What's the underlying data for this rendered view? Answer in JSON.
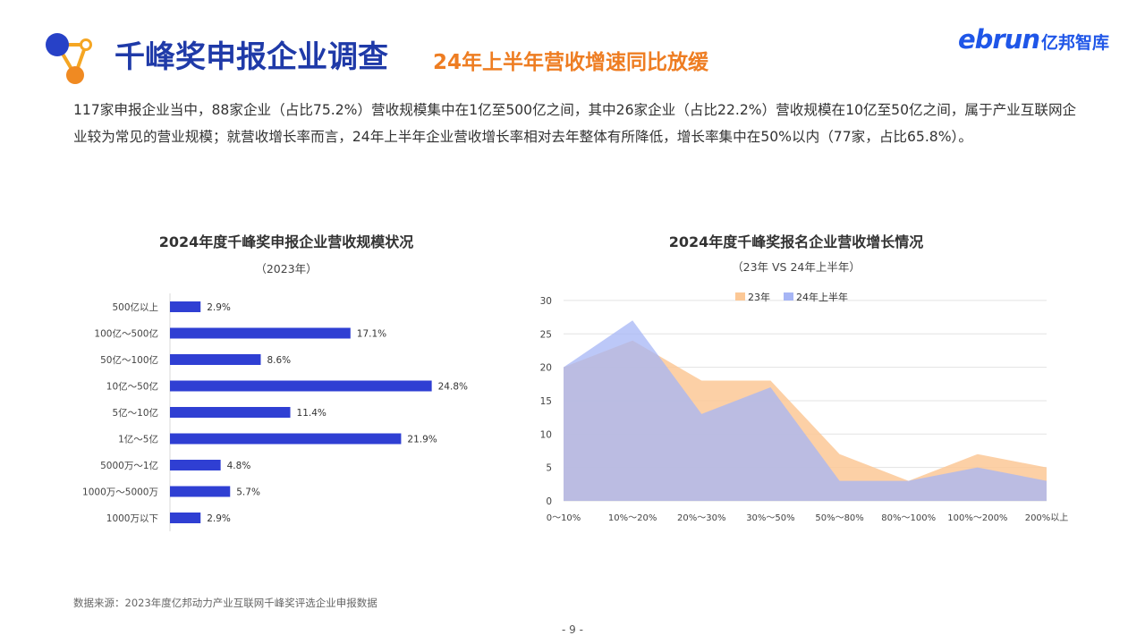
{
  "header": {
    "title": "千峰奖申报企业调查",
    "subtitle": "24年上半年营收增速同比放缓",
    "brand_wordmark": "ebrun",
    "brand_cn": "亿邦智库",
    "logo_icon": "molecule-logo-icon"
  },
  "colors": {
    "title": "#1f3aa8",
    "subtitle": "#ee7d22",
    "brand": "#1f56e8",
    "bar": "#2f3fd3",
    "area_2023": "#fcc896",
    "area_2024": "#a6b5f5",
    "logo_blue": "#2741c7",
    "logo_orange": "#f5a623",
    "logo_orange_dark": "#f08a22"
  },
  "intro": "117家申报企业当中，88家企业（占比75.2%）营收规模集中在1亿至500亿之间，其中26家企业（占比22.2%）营收规模在10亿至50亿之间，属于产业互联网企业较为常见的营业规模；就营收增长率而言，24年上半年企业营收增长率相对去年整体有所降低，增长率集中在50%以内（77家，占比65.8%）。",
  "chart_data": [
    {
      "type": "bar",
      "orientation": "horizontal",
      "title": "2024年度千峰奖申报企业营收规模状况",
      "subtitle": "（2023年）",
      "categories": [
        "500亿以上",
        "100亿～500亿",
        "50亿～100亿",
        "10亿～50亿",
        "5亿～10亿",
        "1亿～5亿",
        "5000万～1亿",
        "1000万～5000万",
        "1000万以下"
      ],
      "values": [
        2.9,
        17.1,
        8.6,
        24.8,
        11.4,
        21.9,
        4.8,
        5.7,
        2.9
      ],
      "value_labels": [
        "2.9%",
        "17.1%",
        "8.6%",
        "24.8%",
        "11.4%",
        "21.9%",
        "4.8%",
        "5.7%",
        "2.9%"
      ],
      "xlim": [
        0,
        26
      ],
      "grid": false
    },
    {
      "type": "area",
      "title": "2024年度千峰奖报名企业营收增长情况",
      "subtitle": "（23年 VS 24年上半年）",
      "x": [
        "0～10%",
        "10%～20%",
        "20%～30%",
        "30%～50%",
        "50%～80%",
        "80%～100%",
        "100%～200%",
        "200%以上"
      ],
      "series": [
        {
          "name": "23年",
          "values": [
            20,
            24,
            18,
            18,
            7,
            3,
            7,
            5
          ]
        },
        {
          "name": "24年上半年",
          "values": [
            20,
            27,
            13,
            17,
            3,
            3,
            5,
            3
          ]
        }
      ],
      "ylim": [
        0,
        30
      ],
      "yticks": [
        "0",
        "5",
        "10",
        "15",
        "20",
        "25",
        "30"
      ],
      "grid": true,
      "legend_position": "top-center"
    }
  ],
  "footer": {
    "source": "数据来源：2023年度亿邦动力产业互联网千峰奖评选企业申报数据",
    "page": "- 9 -"
  }
}
